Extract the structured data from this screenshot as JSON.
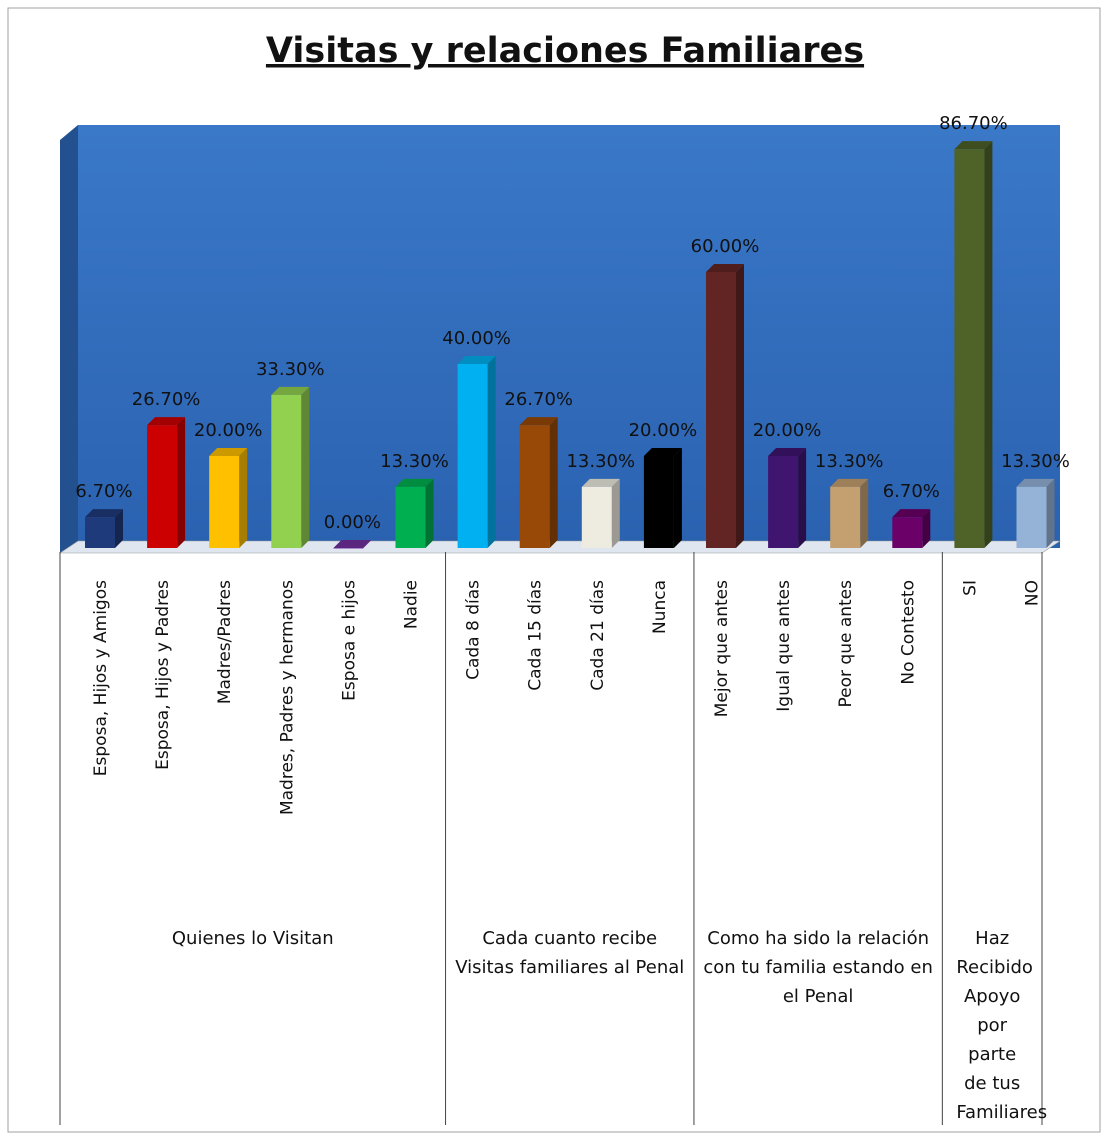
{
  "chart_data": {
    "type": "bar3d",
    "title": "Visitas y relaciones Familiares",
    "categories": [
      "Esposa, Hijos y Amigos",
      "Esposa, Hijos y Padres",
      "Madres/Padres",
      "Madres, Padres  y hermanos",
      "Esposa e hijos",
      "Nadie",
      "Cada 8 días",
      "Cada 15 días",
      "Cada 21 días",
      "Nunca",
      "Mejor que antes",
      "Igual que antes",
      "Peor que antes",
      "No Contesto",
      "SI",
      "NO"
    ],
    "values": [
      6.7,
      26.7,
      20,
      33.3,
      0,
      13.3,
      40,
      26.7,
      13.3,
      20,
      60,
      20,
      13.3,
      6.7,
      86.7,
      13.3
    ],
    "value_labels": [
      "6.70%",
      "26.70%",
      "20.00%",
      "33.30%",
      "0.00%",
      "13.30%",
      "40.00%",
      "26.70%",
      "13.30%",
      "20.00%",
      "60.00%",
      "20.00%",
      "13.30%",
      "6.70%",
      "86.70%",
      "13.30%"
    ],
    "colors": [
      "#1f3a7a",
      "#cc0000",
      "#ffc000",
      "#92d050",
      "#7030a0",
      "#00b050",
      "#00b0f0",
      "#984807",
      "#eeece1",
      "#000000",
      "#632523",
      "#3f1570",
      "#c4a070",
      "#6a0068",
      "#4f6228",
      "#95b3d7"
    ],
    "groups": [
      {
        "label": "Quienes lo Visitan",
        "count": 6
      },
      {
        "label": "Cada cuanto recibe Visitas familiares al Penal",
        "count": 4
      },
      {
        "label": "Como ha sido la relación con tu familia estando en el Penal",
        "count": 4
      },
      {
        "label": "Haz Recibido Apoyo por parte de tus Familiares",
        "count": 2
      }
    ]
  }
}
